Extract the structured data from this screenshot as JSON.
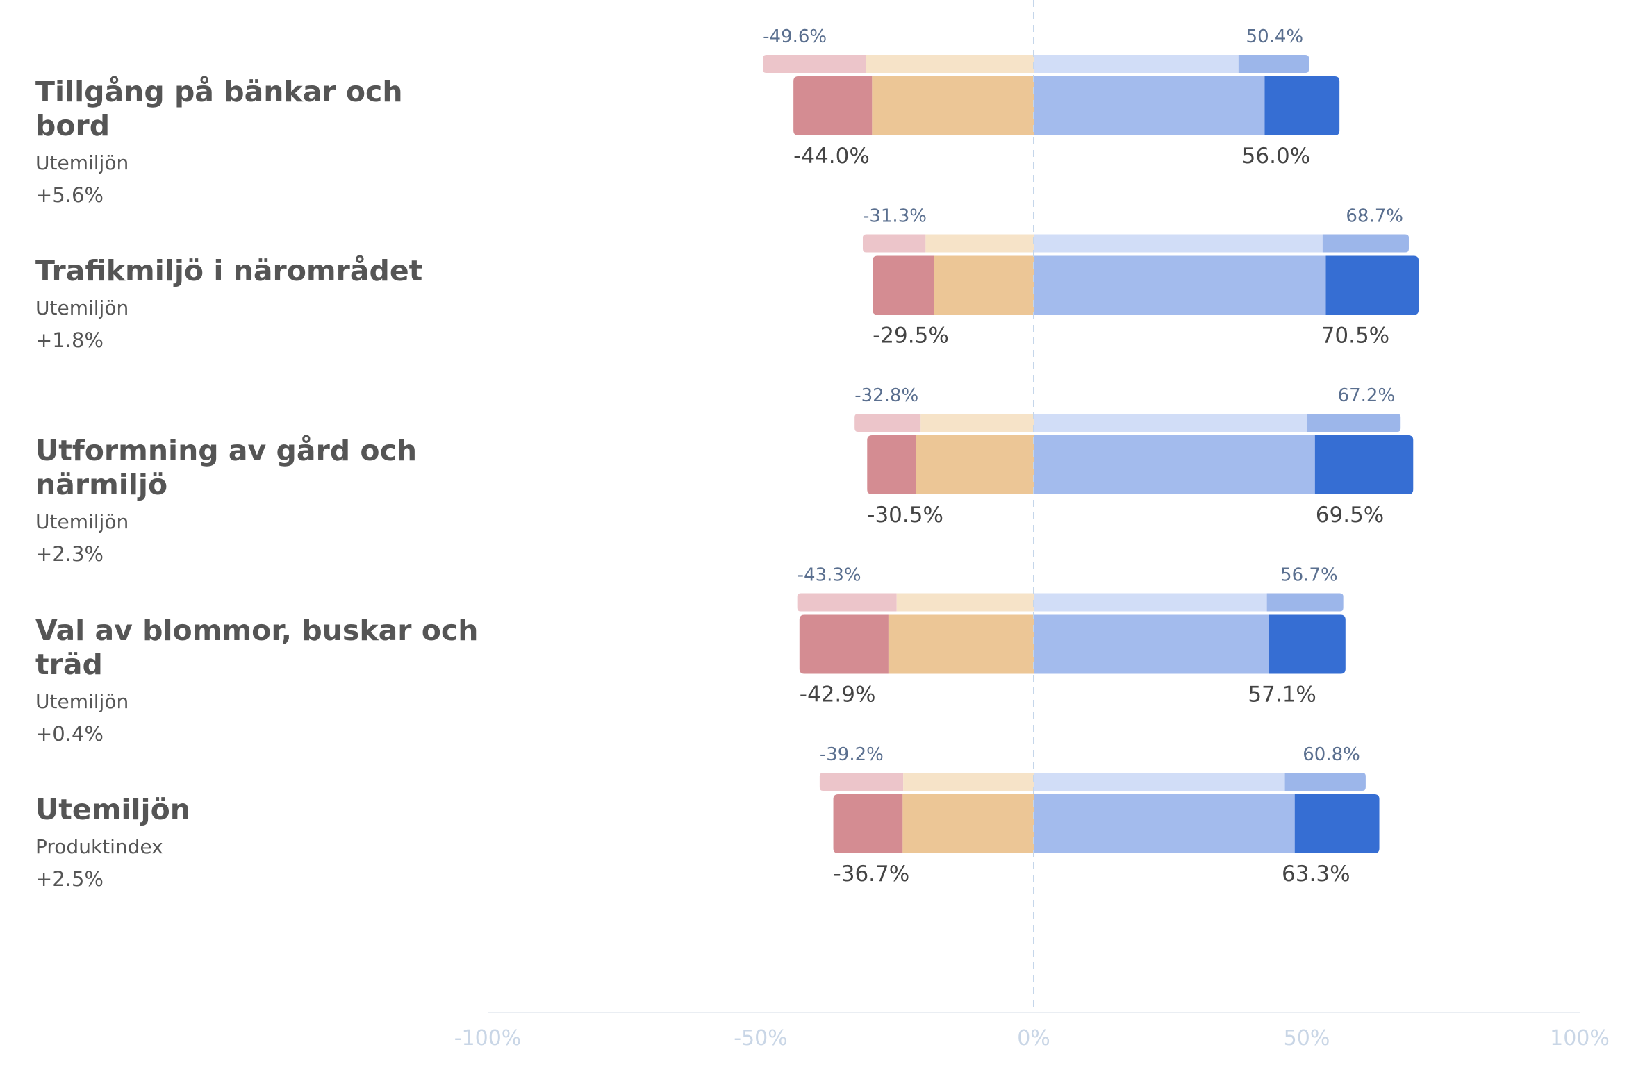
{
  "chart_data": {
    "type": "bar",
    "orientation": "horizontal",
    "stacked": "diverging",
    "xlim": [
      -100,
      100
    ],
    "x_ticks": [
      "-100%",
      "-50%",
      "0%",
      "50%",
      "100%"
    ],
    "x_tick_values": [
      -100,
      -50,
      0,
      50,
      100
    ],
    "rows": [
      {
        "title": "Tillgång på bänkar och bord",
        "subtitle": "Utemiljön",
        "delta": "+5.6%",
        "previous": {
          "negative_outer": 18.9,
          "negative_inner": 30.7,
          "positive_inner": 37.5,
          "positive_outer": 12.9,
          "neg_label": "-49.6%",
          "pos_label": "50.4%"
        },
        "current": {
          "negative_outer": 14.4,
          "negative_inner": 29.6,
          "positive_inner": 42.3,
          "positive_outer": 13.7,
          "neg_label": "-44.0%",
          "pos_label": "56.0%"
        }
      },
      {
        "title": "Trafikmiljö i närområdet",
        "subtitle": "Utemiljön",
        "delta": "+1.8%",
        "previous": {
          "negative_outer": 11.5,
          "negative_inner": 19.8,
          "positive_inner": 52.9,
          "positive_outer": 15.8,
          "neg_label": "-31.3%",
          "pos_label": "68.7%"
        },
        "current": {
          "negative_outer": 11.2,
          "negative_inner": 18.3,
          "positive_inner": 53.5,
          "positive_outer": 17.0,
          "neg_label": "-29.5%",
          "pos_label": "70.5%"
        }
      },
      {
        "title": "Utformning av gård och närmiljö",
        "subtitle": "Utemiljön",
        "delta": "+2.3%",
        "previous": {
          "negative_outer": 12.1,
          "negative_inner": 20.7,
          "positive_inner": 50.0,
          "positive_outer": 17.2,
          "neg_label": "-32.8%",
          "pos_label": "67.2%"
        },
        "current": {
          "negative_outer": 8.9,
          "negative_inner": 21.6,
          "positive_inner": 51.5,
          "positive_outer": 18.0,
          "neg_label": "-30.5%",
          "pos_label": "69.5%"
        }
      },
      {
        "title": "Val av blommor, buskar och träd",
        "subtitle": "Utemiljön",
        "delta": "+0.4%",
        "previous": {
          "negative_outer": 18.2,
          "negative_inner": 25.1,
          "positive_inner": 42.7,
          "positive_outer": 14.0,
          "neg_label": "-43.3%",
          "pos_label": "56.7%"
        },
        "current": {
          "negative_outer": 16.3,
          "negative_inner": 26.6,
          "positive_inner": 43.1,
          "positive_outer": 14.0,
          "neg_label": "-42.9%",
          "pos_label": "57.1%"
        }
      },
      {
        "title": "Utemiljön",
        "subtitle": "Produktindex",
        "delta": "+2.5%",
        "previous": {
          "negative_outer": 15.3,
          "negative_inner": 23.9,
          "positive_inner": 46.0,
          "positive_outer": 14.8,
          "neg_label": "-39.2%",
          "pos_label": "60.8%"
        },
        "current": {
          "negative_outer": 12.7,
          "negative_inner": 24.0,
          "positive_inner": 47.8,
          "positive_outer": 15.5,
          "neg_label": "-36.7%",
          "pos_label": "63.3%"
        }
      }
    ],
    "colors": {
      "current_negative_outer": "#d48c92",
      "current_negative_inner": "#ecc696",
      "current_positive_inner": "#a3bbed",
      "current_positive_outer": "#366ed3",
      "previous_negative_outer": "#ecc5ca",
      "previous_negative_inner": "#f6e3c8",
      "previous_positive_inner": "#d1ddf7",
      "previous_positive_outer": "#9cb6ea",
      "previous_label": "#5a6f8f",
      "current_label": "#444444",
      "tick_label": "#c9d6e6",
      "zero_line": "#c5d6ea",
      "axis_line": "#eaeef3"
    },
    "grid": false
  }
}
